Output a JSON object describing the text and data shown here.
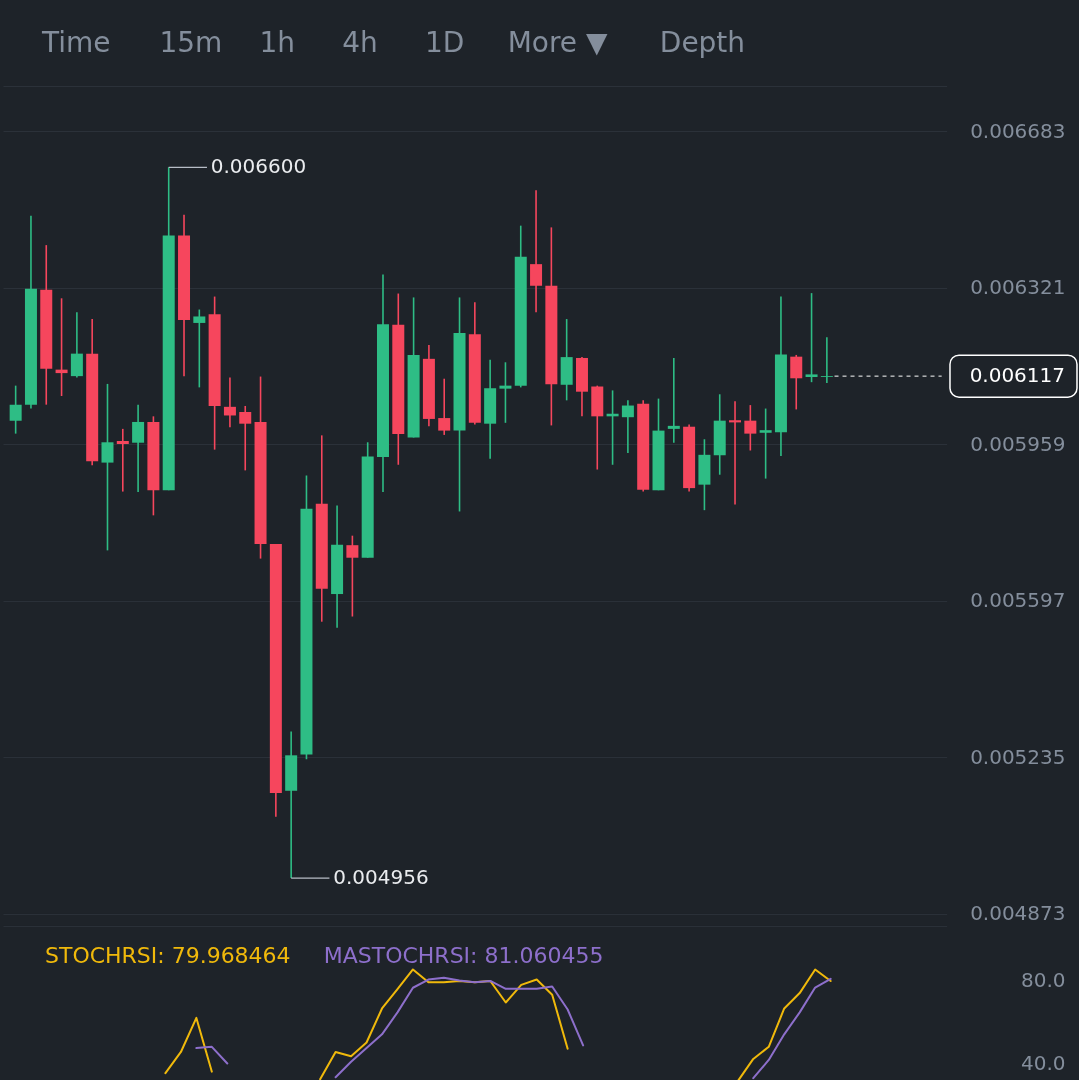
{
  "chart_data": [
    {
      "type": "candlestick",
      "annotations": [
        "Time",
        "15m",
        "1h",
        "4h",
        "1D",
        "More ▼",
        "Depth",
        "0.006600",
        "0.004956"
      ],
      "categories": [
        null,
        null,
        null,
        null,
        null,
        null,
        null,
        null,
        null,
        null,
        null,
        null,
        null,
        null,
        null,
        null,
        null,
        null,
        null,
        null,
        null,
        null,
        null,
        null,
        null,
        null,
        null,
        null,
        null,
        null,
        null,
        null,
        null,
        null,
        null,
        null,
        null,
        null,
        null,
        null,
        null,
        null,
        null,
        null,
        null,
        null,
        null,
        null,
        null,
        null,
        null,
        null,
        null,
        null,
        null,
        null,
        null,
        null,
        null,
        null,
        null
      ],
      "ohlc": [
        [
          0.006014,
          0.006095,
          0.005984,
          0.006051
        ],
        [
          0.006051,
          0.006488,
          0.006042,
          0.006319
        ],
        [
          0.006317,
          0.00642,
          0.006051,
          0.006134
        ],
        [
          0.006132,
          0.006297,
          0.006071,
          0.006124
        ],
        [
          0.006117,
          0.006265,
          0.006114,
          0.006169
        ],
        [
          0.006169,
          0.006249,
          0.005911,
          0.00592
        ],
        [
          0.005917,
          0.006099,
          0.005714,
          0.005964
        ],
        [
          0.005967,
          0.005995,
          0.00585,
          0.00596
        ],
        [
          0.005963,
          0.006051,
          0.005849,
          0.006011
        ],
        [
          0.006011,
          0.006024,
          0.005795,
          0.005853
        ],
        [
          0.005853,
          0.0066,
          0.005853,
          0.006442
        ],
        [
          0.006442,
          0.00649,
          0.006117,
          0.006247
        ],
        [
          0.00624,
          0.006271,
          0.006091,
          0.006255
        ],
        [
          0.00626,
          0.006301,
          0.005947,
          0.006048
        ],
        [
          0.006046,
          0.006114,
          0.005999,
          0.006026
        ],
        [
          0.006034,
          0.006048,
          0.005899,
          0.006007
        ],
        [
          0.006011,
          0.006116,
          0.005695,
          0.005729
        ],
        [
          0.005729,
          0.005729,
          0.005098,
          0.005153
        ],
        [
          0.005158,
          0.005295,
          0.004956,
          0.00524
        ],
        [
          0.005242,
          0.005887,
          0.005231,
          0.00581
        ],
        [
          0.005822,
          0.00598,
          0.005549,
          0.005625
        ],
        [
          0.005613,
          0.005818,
          0.005535,
          0.005727
        ],
        [
          0.005726,
          0.005748,
          0.005561,
          0.005697
        ],
        [
          0.005697,
          0.005964,
          0.005697,
          0.005931
        ],
        [
          0.00593,
          0.006352,
          0.005849,
          0.006237
        ],
        [
          0.006236,
          0.006308,
          0.005912,
          0.005983
        ],
        [
          0.005975,
          0.006299,
          0.005975,
          0.006166
        ],
        [
          0.006157,
          0.006189,
          0.006001,
          0.006018
        ],
        [
          0.00602,
          0.006111,
          0.005981,
          0.005991
        ],
        [
          0.005991,
          0.006299,
          0.005804,
          0.006217
        ],
        [
          0.006214,
          0.006288,
          0.006005,
          0.006009
        ],
        [
          0.006007,
          0.006155,
          0.005926,
          0.006089
        ],
        [
          0.006088,
          0.006149,
          0.006009,
          0.006095
        ],
        [
          0.006095,
          0.006465,
          0.006091,
          0.006393
        ],
        [
          0.006376,
          0.006547,
          0.006265,
          0.006326
        ],
        [
          0.006326,
          0.006461,
          0.006003,
          0.006098
        ],
        [
          0.006097,
          0.006249,
          0.006061,
          0.006161
        ],
        [
          0.006159,
          0.006161,
          0.006024,
          0.006081
        ],
        [
          0.006093,
          0.006095,
          0.005901,
          0.006024
        ],
        [
          0.006024,
          0.006084,
          0.005912,
          0.00603
        ],
        [
          0.006022,
          0.006061,
          0.005939,
          0.006049
        ],
        [
          0.006053,
          0.006061,
          0.00585,
          0.005854
        ],
        [
          0.005853,
          0.006065,
          0.005853,
          0.005991
        ],
        [
          0.005995,
          0.006159,
          0.005963,
          0.006002
        ],
        [
          0.006,
          0.006005,
          0.00585,
          0.005858
        ],
        [
          0.005866,
          0.005971,
          0.005807,
          0.005935
        ],
        [
          0.005934,
          0.006075,
          0.005889,
          0.006014
        ],
        [
          0.006015,
          0.006059,
          0.00582,
          0.00601
        ],
        [
          0.006014,
          0.00605,
          0.005945,
          0.005984
        ],
        [
          0.005986,
          0.006042,
          0.00588,
          0.005992
        ],
        [
          0.005987,
          0.006301,
          0.005932,
          0.006167
        ],
        [
          0.006162,
          0.006166,
          0.00604,
          0.006112
        ],
        [
          0.006115,
          0.006309,
          0.006103,
          0.006121
        ],
        [
          0.006115,
          0.006207,
          0.006101,
          0.006117
        ],
        null,
        null,
        null,
        null,
        null,
        null,
        null
      ],
      "colors": [
        "#2ebd85",
        "#2ebd85",
        "#f6465d",
        "#f6465d",
        "#2ebd85",
        "#f6465d",
        "#2ebd85",
        "#f6465d",
        "#2ebd85",
        "#f6465d",
        "#2ebd85",
        "#f6465d",
        "#2ebd85",
        "#f6465d",
        "#f6465d",
        "#f6465d",
        "#f6465d",
        "#f6465d",
        "#2ebd85",
        "#2ebd85",
        "#f6465d",
        "#2ebd85",
        "#f6465d",
        "#2ebd85",
        "#2ebd85",
        "#f6465d",
        "#2ebd85",
        "#f6465d",
        "#f6465d",
        "#2ebd85",
        "#f6465d",
        "#2ebd85",
        "#2ebd85",
        "#2ebd85",
        "#f6465d",
        "#f6465d",
        "#2ebd85",
        "#f6465d",
        "#f6465d",
        "#2ebd85",
        "#2ebd85",
        "#f6465d",
        "#2ebd85",
        "#2ebd85",
        "#f6465d",
        "#2ebd85",
        "#2ebd85",
        "#f6465d",
        "#f6465d",
        "#2ebd85",
        "#2ebd85",
        "#f6465d",
        "#2ebd85",
        "#2ebd85",
        null,
        null,
        null,
        null,
        null,
        null,
        null
      ],
      "ylim": [
        0.004873,
        0.006788
      ],
      "yticks": [
        0.006683,
        0.006321,
        0.005959,
        0.005597,
        0.005235,
        0.004873
      ],
      "grid": "y",
      "tick_labels": "y",
      "ref_lines": [
        {
          "axis": "y",
          "value": 0.006117,
          "label": "0.006117",
          "color": "#ffffff",
          "line_style": "dashed"
        }
      ]
    },
    {
      "type": "line",
      "categories": [
        null,
        null,
        null,
        null,
        null,
        null,
        null,
        null,
        null,
        null,
        null,
        null,
        null,
        null,
        null,
        null,
        null,
        null,
        null,
        null,
        null,
        null,
        null,
        null,
        null,
        null,
        null,
        null,
        null,
        null,
        null,
        null,
        null,
        null,
        null,
        null,
        null,
        null,
        null,
        null,
        null,
        null,
        null,
        null,
        null,
        null,
        null,
        null,
        null,
        null,
        null,
        null,
        null,
        null,
        null,
        null,
        null,
        null,
        null,
        null,
        null
      ],
      "series": [
        {
          "name": "STOCHRSI: 79.968464",
          "color": "#f0b90b",
          "values": [
            null,
            null,
            null,
            null,
            null,
            null,
            null,
            null,
            null,
            null,
            35.1,
            45.4,
            62.0,
            35.8,
            null,
            null,
            null,
            null,
            null,
            null,
            32.1,
            45.4,
            43.3,
            50.0,
            66.6,
            76.0,
            85.6,
            79.4,
            79.4,
            80.0,
            79.4,
            80.0,
            69.5,
            78.1,
            80.7,
            73.3,
            47.0,
            null,
            null,
            null,
            null,
            null,
            null,
            null,
            null,
            null,
            null,
            31.2,
            42.0,
            47.9,
            66.6,
            74.1,
            85.6,
            79.968464,
            null,
            null,
            null,
            null,
            null,
            null,
            null
          ]
        },
        {
          "name": "MASTOCHRSI: 81.060455",
          "color": "#8d6fcb",
          "values": [
            null,
            null,
            null,
            null,
            null,
            null,
            null,
            null,
            null,
            null,
            null,
            null,
            47.3,
            47.9,
            39.8,
            null,
            null,
            null,
            null,
            null,
            null,
            33.1,
            40.6,
            47.3,
            54.0,
            64.7,
            76.7,
            80.7,
            81.6,
            80.2,
            79.4,
            80.0,
            76.2,
            76.2,
            76.2,
            77.3,
            66.1,
            48.6,
            null,
            null,
            null,
            null,
            null,
            null,
            null,
            null,
            null,
            null,
            32.6,
            41.5,
            54.0,
            64.7,
            76.8,
            81.060455,
            null,
            null,
            null,
            null,
            null,
            null,
            null
          ]
        }
      ],
      "ylim": [
        29.3,
        106.8
      ],
      "yticks": [
        {
          "value": 80,
          "label": "80.0"
        },
        {
          "value": 40,
          "label": "40.0"
        }
      ],
      "tick_labels": "y"
    }
  ]
}
